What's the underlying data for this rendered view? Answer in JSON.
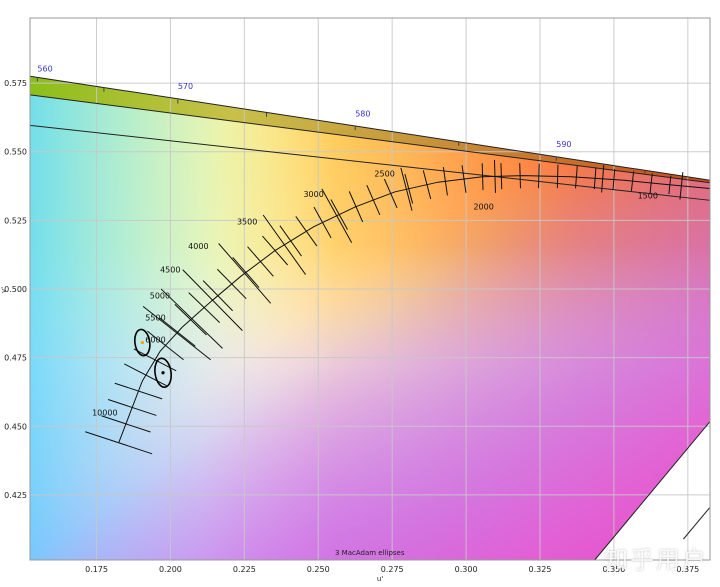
{
  "chart_data": {
    "type": "scatter",
    "title": "",
    "xlabel": "u'",
    "ylabel": "v'",
    "xlim": [
      0.1525,
      0.3825
    ],
    "ylim": [
      0.4013,
      0.5987
    ],
    "x_ticks": [
      0.175,
      0.2,
      0.225,
      0.25,
      0.275,
      0.3,
      0.325,
      0.35,
      0.375
    ],
    "x_tick_labels": [
      "0.175",
      "0.200",
      "0.225",
      "0.250",
      "0.275",
      "0.300",
      "0.325",
      "0.350",
      "0.375"
    ],
    "y_ticks": [
      0.425,
      0.45,
      0.475,
      0.5,
      0.525,
      0.55,
      0.575
    ],
    "y_tick_labels": [
      "0.425",
      "0.450",
      "0.475",
      "0.500",
      "0.525",
      "0.550",
      "0.575"
    ],
    "grid": true,
    "annotation": "3  MacAdam ellipses",
    "spectral_locus": [
      {
        "u": 0.1525,
        "v": 0.5775
      },
      {
        "u": 0.3825,
        "v": 0.5396
      }
    ],
    "wavelength_labels": [
      {
        "label": "560",
        "u": 0.155,
        "v": 0.5778
      },
      {
        "label": "570",
        "u": 0.2025,
        "v": 0.5714
      },
      {
        "label": "580",
        "u": 0.2625,
        "v": 0.5614
      },
      {
        "label": "590",
        "u": 0.3305,
        "v": 0.5502
      }
    ],
    "wavelength_ticks": [
      {
        "u": 0.155,
        "v": 0.5771
      },
      {
        "u": 0.1775,
        "v": 0.5733
      },
      {
        "u": 0.2025,
        "v": 0.569
      },
      {
        "u": 0.2325,
        "v": 0.5642
      },
      {
        "u": 0.2625,
        "v": 0.5593
      },
      {
        "u": 0.2975,
        "v": 0.5536
      },
      {
        "u": 0.3305,
        "v": 0.5482
      },
      {
        "u": 0.3605,
        "v": 0.5432
      }
    ],
    "purple_line": [
      {
        "u": 0.3825,
        "v": 0.4517
      },
      {
        "u": 0.3435,
        "v": 0.4013
      }
    ],
    "boundary_lines": [
      [
        {
          "u": 0.1525,
          "v": 0.5596
        },
        {
          "u": 0.3825,
          "v": 0.5323
        }
      ],
      [
        {
          "u": 0.1525,
          "v": 0.5707
        },
        {
          "u": 0.3825,
          "v": 0.5387
        }
      ],
      [
        {
          "u": 0.3825,
          "v": 0.4205
        },
        {
          "u": 0.3735,
          "v": 0.4089
        }
      ]
    ],
    "planckian_locus": [
      {
        "u": 0.1825,
        "v": 0.444
      },
      {
        "u": 0.1905,
        "v": 0.4665
      },
      {
        "u": 0.1965,
        "v": 0.4773
      },
      {
        "u": 0.204,
        "v": 0.4861
      },
      {
        "u": 0.214,
        "v": 0.4957
      },
      {
        "u": 0.224,
        "v": 0.5048
      },
      {
        "u": 0.2355,
        "v": 0.5141
      },
      {
        "u": 0.2485,
        "v": 0.5227
      },
      {
        "u": 0.2625,
        "v": 0.5299
      },
      {
        "u": 0.276,
        "v": 0.5354
      },
      {
        "u": 0.2905,
        "v": 0.5389
      },
      {
        "u": 0.3055,
        "v": 0.5409
      },
      {
        "u": 0.3195,
        "v": 0.5413
      },
      {
        "u": 0.3355,
        "v": 0.5409
      },
      {
        "u": 0.3535,
        "v": 0.5396
      },
      {
        "u": 0.3665,
        "v": 0.5382
      },
      {
        "u": 0.3825,
        "v": 0.5366
      }
    ],
    "isotherm_long": [
      {
        "label": "10000",
        "t": 0.0,
        "len": 0.024
      },
      {
        "label": "6000",
        "t": 0.185,
        "len": 0.03
      },
      {
        "label": "5500",
        "t": 0.215,
        "len": 0.03
      },
      {
        "label": "5000",
        "t": 0.255,
        "len": 0.03
      },
      {
        "label": "4500",
        "t": 0.315,
        "len": 0.028
      },
      {
        "label": "4000",
        "t": 0.385,
        "len": 0.026
      },
      {
        "label": "3500",
        "t": 0.47,
        "len": 0.022
      },
      {
        "label": "3000",
        "t": 0.575,
        "len": 0.016
      },
      {
        "label": "2500",
        "t": 0.7,
        "len": 0.012
      },
      {
        "label": "2000",
        "t": 0.85,
        "len": 0.01
      },
      {
        "label": "1500",
        "t": 0.96,
        "len": 0.01
      }
    ],
    "isotherm_labels": [
      {
        "label": "10000",
        "u": 0.1735,
        "v": 0.454
      },
      {
        "label": "6000",
        "u": 0.1915,
        "v": 0.4805
      },
      {
        "label": "5500",
        "u": 0.1915,
        "v": 0.4885
      },
      {
        "label": "5000",
        "u": 0.193,
        "v": 0.4965
      },
      {
        "label": "4500",
        "u": 0.1965,
        "v": 0.506
      },
      {
        "label": "4000",
        "u": 0.206,
        "v": 0.5145
      },
      {
        "label": "3500",
        "u": 0.2225,
        "v": 0.5235
      },
      {
        "label": "3000",
        "u": 0.245,
        "v": 0.5335
      },
      {
        "label": "2500",
        "u": 0.269,
        "v": 0.541
      },
      {
        "label": "2000",
        "u": 0.3025,
        "v": 0.529
      },
      {
        "label": "1500",
        "u": 0.358,
        "v": 0.533
      }
    ],
    "isotherm_short_count": 36,
    "macadam_ellipses": [
      {
        "u": 0.1905,
        "v": 0.4805,
        "a": 0.0025,
        "b": 0.0048,
        "angle": -8,
        "center_color": "#ff9900"
      },
      {
        "u": 0.1975,
        "v": 0.4695,
        "a": 0.0027,
        "b": 0.0053,
        "angle": -8,
        "center_color": "#000000"
      }
    ]
  },
  "watermark": "知乎用户"
}
